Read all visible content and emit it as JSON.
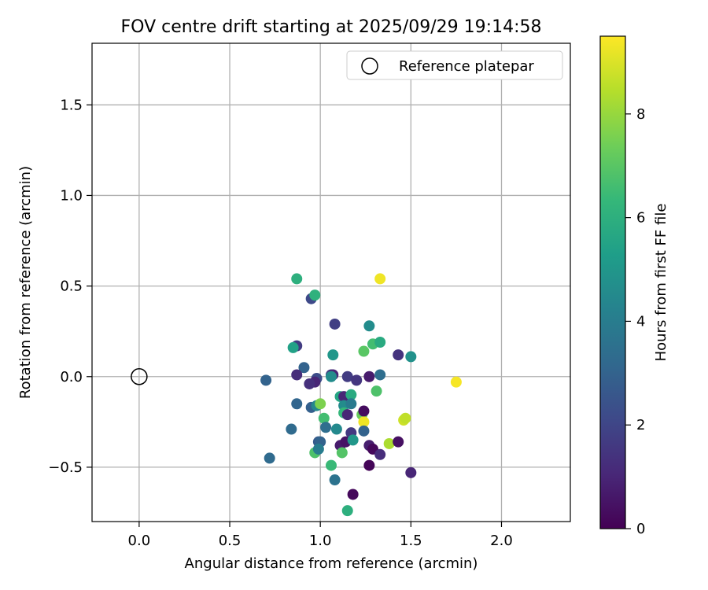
{
  "chart_data": {
    "type": "scatter",
    "title": "FOV centre drift starting at 2025/09/29 19:14:58",
    "xlabel": "Angular distance from reference (arcmin)",
    "ylabel": "Rotation from reference (arcmin)",
    "xlim": [
      -0.26,
      2.38
    ],
    "ylim": [
      -0.8,
      1.84
    ],
    "xticks": [
      0.0,
      0.5,
      1.0,
      1.5,
      2.0
    ],
    "xtick_labels": [
      "0.0",
      "0.5",
      "1.0",
      "1.5",
      "2.0"
    ],
    "yticks": [
      -0.5,
      0.0,
      0.5,
      1.0,
      1.5
    ],
    "ytick_labels": [
      "−0.5",
      "0.0",
      "0.5",
      "1.0",
      "1.5"
    ],
    "grid": true,
    "legend": {
      "location": "top-right",
      "entries": [
        "Reference platepar"
      ]
    },
    "reference_point": {
      "x": 0.0,
      "y": 0.0,
      "label": "Reference platepar"
    },
    "colorbar": {
      "label": "Hours from first FF file",
      "min": 0,
      "max": 9.5,
      "ticks": [
        0,
        2,
        4,
        6,
        8
      ],
      "tick_labels": [
        "0",
        "2",
        "4",
        "6",
        "8"
      ],
      "colormap": "viridis",
      "colors": [
        "#440154",
        "#482878",
        "#3e4989",
        "#31688e",
        "#26828e",
        "#1f9e89",
        "#35b779",
        "#6ece58",
        "#b5de2b",
        "#fde725"
      ]
    },
    "series": [
      {
        "name": "Hours from first FF file",
        "points": [
          {
            "x": 0.87,
            "y": 0.54,
            "h": 6.0
          },
          {
            "x": 1.33,
            "y": 0.54,
            "h": 9.3
          },
          {
            "x": 0.95,
            "y": 0.43,
            "h": 2.1
          },
          {
            "x": 0.97,
            "y": 0.45,
            "h": 6.1
          },
          {
            "x": 1.08,
            "y": 0.29,
            "h": 1.8
          },
          {
            "x": 1.27,
            "y": 0.28,
            "h": 4.6
          },
          {
            "x": 0.87,
            "y": 0.17,
            "h": 1.7
          },
          {
            "x": 0.85,
            "y": 0.16,
            "h": 5.4
          },
          {
            "x": 1.24,
            "y": 0.14,
            "h": 7.0
          },
          {
            "x": 1.29,
            "y": 0.18,
            "h": 6.6
          },
          {
            "x": 1.33,
            "y": 0.19,
            "h": 5.8
          },
          {
            "x": 1.07,
            "y": 0.12,
            "h": 5.0
          },
          {
            "x": 1.43,
            "y": 0.12,
            "h": 1.4
          },
          {
            "x": 1.5,
            "y": 0.11,
            "h": 4.8
          },
          {
            "x": 0.91,
            "y": 0.05,
            "h": 3.0
          },
          {
            "x": 0.87,
            "y": 0.01,
            "h": 1.2
          },
          {
            "x": 0.98,
            "y": -0.01,
            "h": 2.2
          },
          {
            "x": 0.97,
            "y": -0.03,
            "h": 1.0
          },
          {
            "x": 0.94,
            "y": -0.04,
            "h": 1.3
          },
          {
            "x": 1.06,
            "y": 0.01,
            "h": 1.6
          },
          {
            "x": 1.07,
            "y": 0.01,
            "h": 1.0
          },
          {
            "x": 1.06,
            "y": 0.0,
            "h": 4.6
          },
          {
            "x": 1.15,
            "y": 0.0,
            "h": 1.7
          },
          {
            "x": 1.2,
            "y": -0.02,
            "h": 1.5
          },
          {
            "x": 1.27,
            "y": 0.0,
            "h": 0.7
          },
          {
            "x": 1.33,
            "y": 0.01,
            "h": 3.4
          },
          {
            "x": 0.7,
            "y": -0.02,
            "h": 3.0
          },
          {
            "x": 1.75,
            "y": -0.03,
            "h": 9.4
          },
          {
            "x": 1.31,
            "y": -0.08,
            "h": 6.8
          },
          {
            "x": 1.11,
            "y": -0.11,
            "h": 5.6
          },
          {
            "x": 1.13,
            "y": -0.11,
            "h": 1.0
          },
          {
            "x": 1.17,
            "y": -0.1,
            "h": 5.8
          },
          {
            "x": 0.87,
            "y": -0.15,
            "h": 3.1
          },
          {
            "x": 0.95,
            "y": -0.17,
            "h": 2.9
          },
          {
            "x": 0.98,
            "y": -0.16,
            "h": 4.4
          },
          {
            "x": 1.0,
            "y": -0.15,
            "h": 7.6
          },
          {
            "x": 1.13,
            "y": -0.16,
            "h": 4.6
          },
          {
            "x": 1.17,
            "y": -0.15,
            "h": 3.9
          },
          {
            "x": 1.13,
            "y": -0.2,
            "h": 6.3
          },
          {
            "x": 1.15,
            "y": -0.21,
            "h": 1.0
          },
          {
            "x": 1.23,
            "y": -0.21,
            "h": 7.3
          },
          {
            "x": 1.24,
            "y": -0.19,
            "h": 0.3
          },
          {
            "x": 1.24,
            "y": -0.25,
            "h": 9.3
          },
          {
            "x": 1.02,
            "y": -0.23,
            "h": 6.6
          },
          {
            "x": 1.46,
            "y": -0.24,
            "h": 8.8
          },
          {
            "x": 1.47,
            "y": -0.23,
            "h": 8.6
          },
          {
            "x": 0.84,
            "y": -0.29,
            "h": 3.3
          },
          {
            "x": 1.03,
            "y": -0.28,
            "h": 3.4
          },
          {
            "x": 1.09,
            "y": -0.29,
            "h": 4.5
          },
          {
            "x": 1.24,
            "y": -0.3,
            "h": 3.0
          },
          {
            "x": 1.17,
            "y": -0.31,
            "h": 1.6
          },
          {
            "x": 0.99,
            "y": -0.36,
            "h": 2.7
          },
          {
            "x": 1.0,
            "y": -0.36,
            "h": 3.0
          },
          {
            "x": 1.11,
            "y": -0.38,
            "h": 0.7
          },
          {
            "x": 1.14,
            "y": -0.36,
            "h": 0.5
          },
          {
            "x": 1.18,
            "y": -0.35,
            "h": 5.0
          },
          {
            "x": 1.27,
            "y": -0.38,
            "h": 0.8
          },
          {
            "x": 1.29,
            "y": -0.4,
            "h": 0.2
          },
          {
            "x": 1.38,
            "y": -0.37,
            "h": 8.3
          },
          {
            "x": 1.43,
            "y": -0.36,
            "h": 0.4
          },
          {
            "x": 0.97,
            "y": -0.42,
            "h": 6.8
          },
          {
            "x": 0.99,
            "y": -0.4,
            "h": 4.0
          },
          {
            "x": 1.12,
            "y": -0.42,
            "h": 6.9
          },
          {
            "x": 1.33,
            "y": -0.43,
            "h": 1.2
          },
          {
            "x": 0.72,
            "y": -0.45,
            "h": 3.3
          },
          {
            "x": 1.06,
            "y": -0.49,
            "h": 6.4
          },
          {
            "x": 1.27,
            "y": -0.49,
            "h": 0.1
          },
          {
            "x": 1.5,
            "y": -0.53,
            "h": 1.0
          },
          {
            "x": 1.08,
            "y": -0.57,
            "h": 3.6
          },
          {
            "x": 1.18,
            "y": -0.65,
            "h": 0.2
          },
          {
            "x": 1.15,
            "y": -0.74,
            "h": 6.0
          }
        ]
      }
    ]
  }
}
